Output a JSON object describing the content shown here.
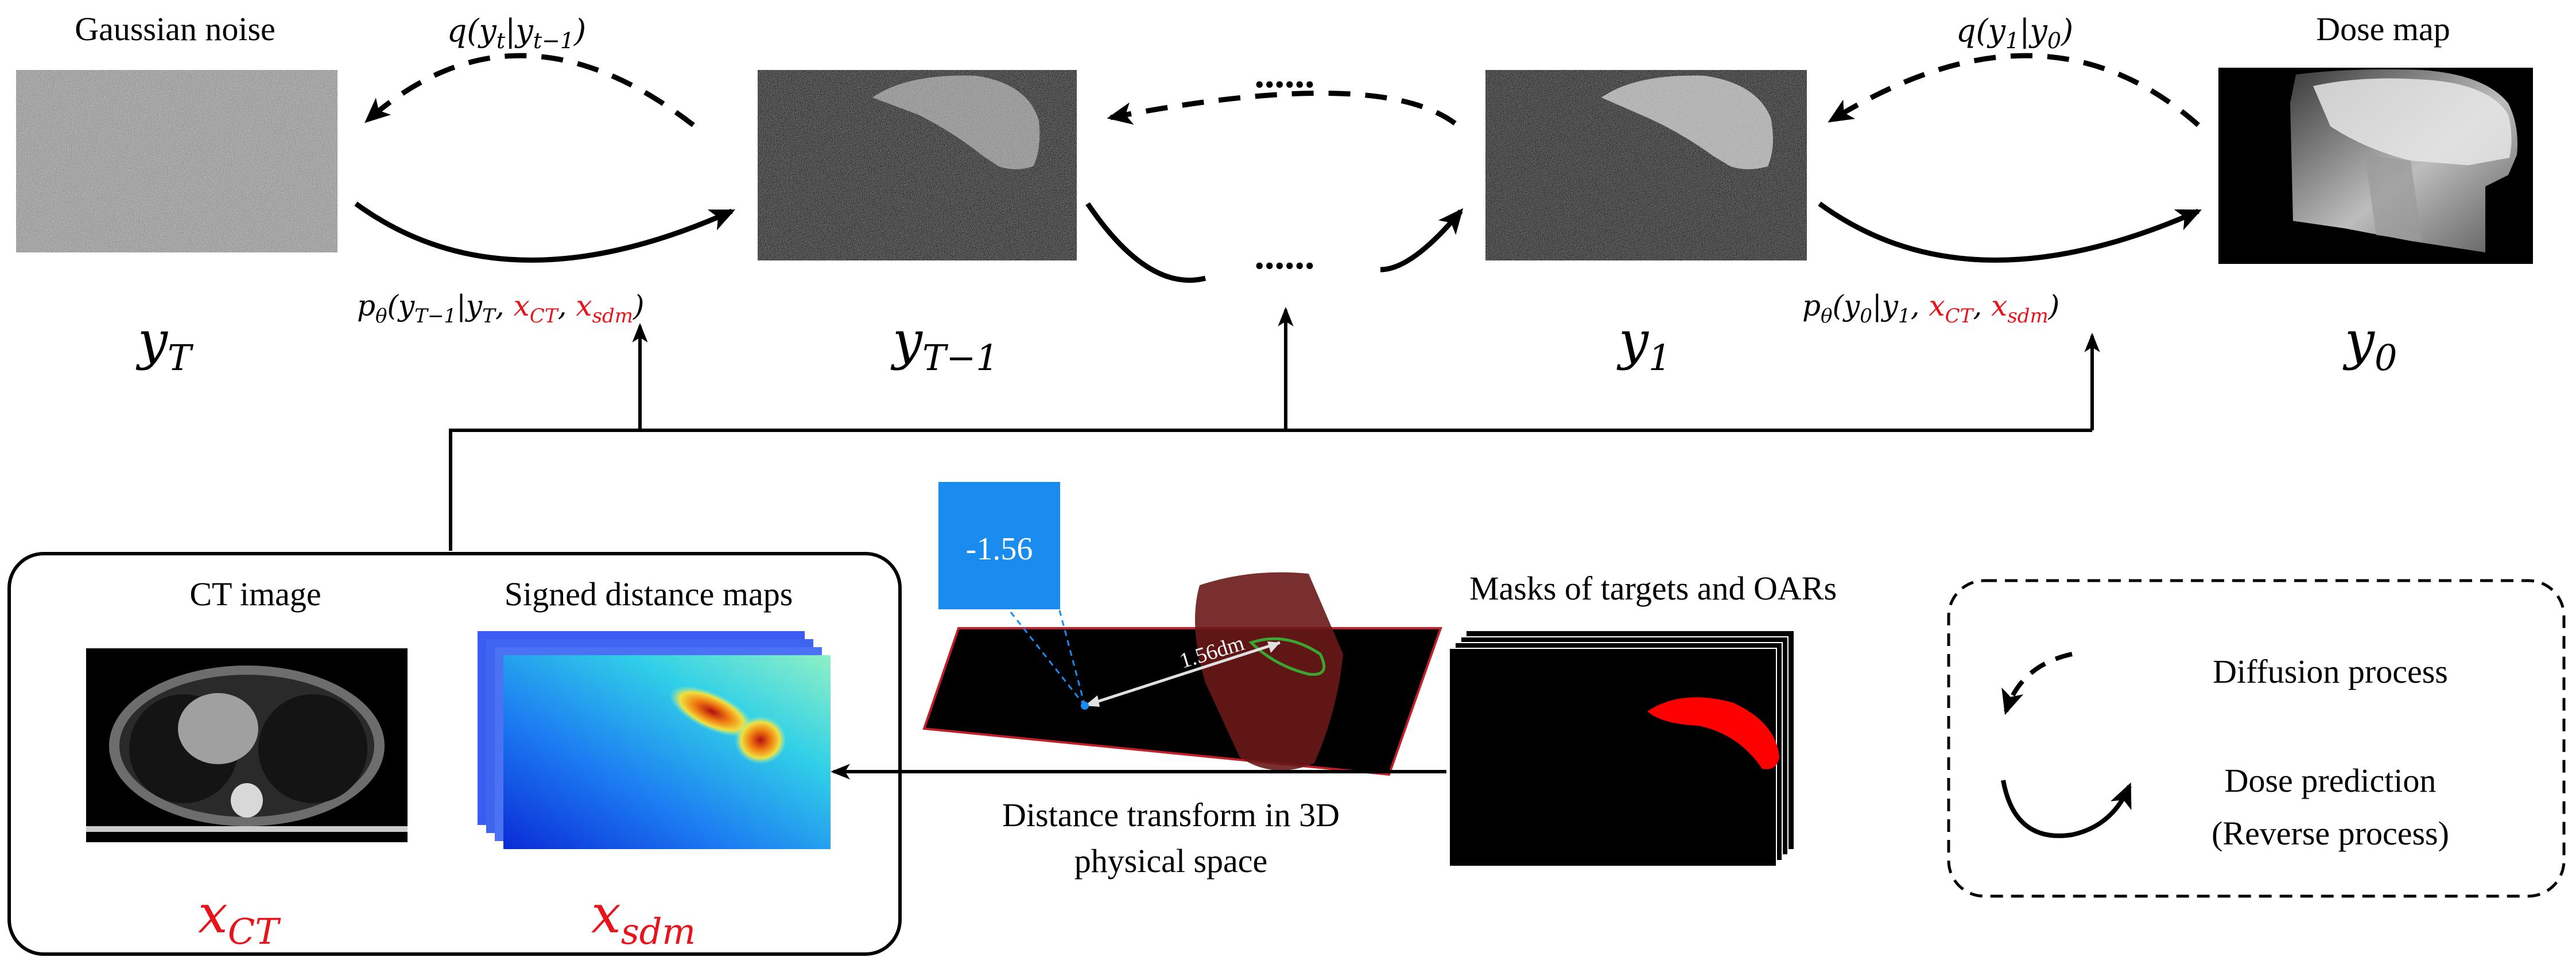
{
  "steps": {
    "gaussian_label": "Gaussian noise",
    "dose_label": "Dose map",
    "yT": "y",
    "yT_sub": "T",
    "yTm1": "y",
    "yTm1_sub": "T−1",
    "y1": "y",
    "y1_sub": "1",
    "y0": "y",
    "y0_sub": "0",
    "dots": "......"
  },
  "forward": {
    "q_t_prefix": "q(y",
    "q_t_sub1": "t",
    "q_t_mid": "|y",
    "q_t_sub2": "t−1",
    "q_t_suffix": ")",
    "q_1_prefix": "q(y",
    "q_1_sub1": "1",
    "q_1_mid": "|y",
    "q_1_sub2": "0",
    "q_1_suffix": ")"
  },
  "reverse": {
    "p_left_a": "p",
    "p_left_theta": "θ",
    "p_left_b": "(y",
    "p_left_sub1": "T−1",
    "p_left_c": "|y",
    "p_left_sub2": "T",
    "p_left_d": ", ",
    "p_left_xct": "x",
    "p_left_xct_sub": "CT",
    "p_left_e": ", ",
    "p_left_xsdm": "x",
    "p_left_xsdm_sub": "sdm",
    "p_left_f": ")",
    "p_right_a": "p",
    "p_right_theta": "θ",
    "p_right_b": "(y",
    "p_right_sub1": "0",
    "p_right_c": "|y",
    "p_right_sub2": "1",
    "p_right_d": ", ",
    "p_right_xct": "x",
    "p_right_xct_sub": "CT",
    "p_right_e": ", ",
    "p_right_xsdm": "x",
    "p_right_xsdm_sub": "sdm",
    "p_right_f": ")"
  },
  "conditions": {
    "ct_label": "CT image",
    "sdm_label": "Signed distance maps",
    "xct": "x",
    "xct_sub": "CT",
    "xsdm": "x",
    "xsdm_sub": "sdm",
    "masks_label": "Masks of targets and OARs",
    "distance_value": "-1.56",
    "distance_measure": "1.56dm",
    "transform_line1": "Distance transform in 3D",
    "transform_line2": "physical space"
  },
  "legend": {
    "diffusion": "Diffusion process",
    "dose_line1": "Dose prediction",
    "dose_line2": "(Reverse process)"
  },
  "colors": {
    "condition_red": "#e8141c",
    "info_blue": "#1a8cf0"
  }
}
